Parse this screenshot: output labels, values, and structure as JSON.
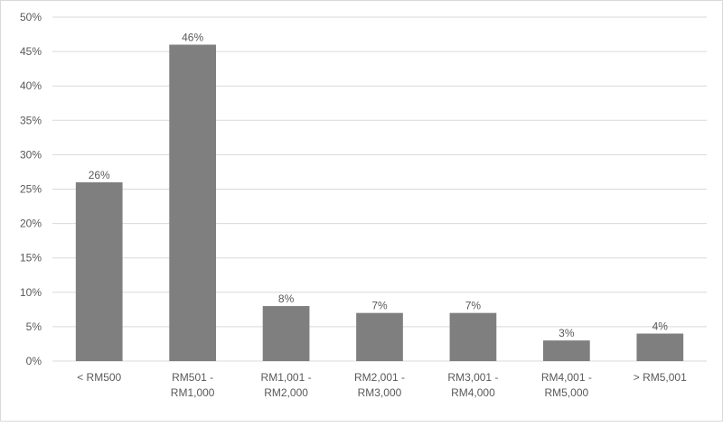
{
  "chart_data": {
    "type": "bar",
    "title": "",
    "xlabel": "",
    "ylabel": "",
    "categories": [
      [
        "< RM500"
      ],
      [
        "RM501 -",
        "RM1,000"
      ],
      [
        "RM1,001 -",
        "RM2,000"
      ],
      [
        "RM2,001 -",
        "RM3,000"
      ],
      [
        "RM3,001 -",
        "RM4,000"
      ],
      [
        "RM4,001 -",
        "RM5,000"
      ],
      [
        "> RM5,001"
      ]
    ],
    "values": [
      26,
      46,
      8,
      7,
      7,
      3,
      4
    ],
    "data_labels": [
      "26%",
      "46%",
      "8%",
      "7%",
      "7%",
      "3%",
      "4%"
    ],
    "ylim": [
      0,
      50
    ],
    "y_ticks": [
      0,
      5,
      10,
      15,
      20,
      25,
      30,
      35,
      40,
      45,
      50
    ],
    "y_tick_labels": [
      "0%",
      "5%",
      "10%",
      "15%",
      "20%",
      "25%",
      "30%",
      "35%",
      "40%",
      "45%",
      "50%"
    ],
    "grid": true,
    "legend": "none",
    "bar_color": "#7f7f7f",
    "grid_color": "#d9d9d9"
  }
}
